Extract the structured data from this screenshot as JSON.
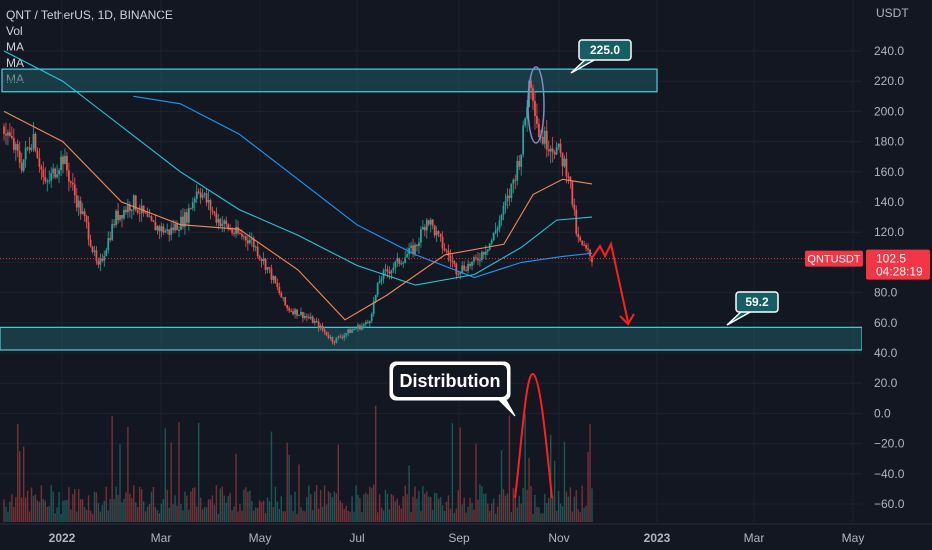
{
  "legend": {
    "symbol_line": "QNT / TetherUS, 1D, BINANCE",
    "indicators": [
      "Vol",
      "MA",
      "MA",
      "MA"
    ]
  },
  "axis": {
    "currency": "USDT",
    "y_ticks": [
      240,
      220,
      200,
      180,
      160,
      140,
      120,
      100,
      80,
      60,
      40,
      20,
      0,
      -20,
      -40,
      -60
    ],
    "y_tick_labels": [
      "240.0",
      "220.0",
      "200.0",
      "180.0",
      "160.0",
      "140.0",
      "120.0",
      "100.0",
      "80.0",
      "60.0",
      "40.0",
      "20.0",
      "0.0",
      "−20.0",
      "−40.0",
      "−60.0"
    ],
    "x_labels": [
      "2022",
      "Mar",
      "May",
      "Jul",
      "Sep",
      "Nov",
      "2023",
      "Mar",
      "May"
    ]
  },
  "price_tag": {
    "symbol": "QNTUSDT",
    "price": "102.5",
    "countdown": "04:28:19"
  },
  "annotations": {
    "top_callout": "225.0",
    "bottom_callout": "59.2",
    "distribution_label": "Distribution"
  },
  "colors": {
    "background": "#131722",
    "bull": "#26a69a",
    "bear": "#ef5350",
    "zone_border": "#4dd0e1",
    "zone_fill": "#1f5a63",
    "ma_fast": "#ef8a5a",
    "ma_mid": "#26c6da",
    "ma_slow": "#2196f3",
    "arrow": "#ff1f1f",
    "price_tag": "#f23645"
  },
  "chart_data": {
    "type": "candlestick",
    "title": "QNT / TetherUS, 1D, BINANCE",
    "ylabel": "USDT",
    "ylim": [
      -60,
      250
    ],
    "resistance_zone": [
      213,
      228
    ],
    "support_zone": [
      42,
      57
    ],
    "last_price": 102.5,
    "price_path": [
      {
        "t": 0,
        "p": 190
      },
      {
        "t": 0.03,
        "p": 165
      },
      {
        "t": 0.05,
        "p": 185
      },
      {
        "t": 0.07,
        "p": 150
      },
      {
        "t": 0.1,
        "p": 170
      },
      {
        "t": 0.12,
        "p": 145
      },
      {
        "t": 0.14,
        "p": 125
      },
      {
        "t": 0.16,
        "p": 95
      },
      {
        "t": 0.19,
        "p": 130
      },
      {
        "t": 0.22,
        "p": 140
      },
      {
        "t": 0.25,
        "p": 125
      },
      {
        "t": 0.28,
        "p": 120
      },
      {
        "t": 0.31,
        "p": 130
      },
      {
        "t": 0.33,
        "p": 150
      },
      {
        "t": 0.36,
        "p": 130
      },
      {
        "t": 0.39,
        "p": 120
      },
      {
        "t": 0.42,
        "p": 115
      },
      {
        "t": 0.45,
        "p": 95
      },
      {
        "t": 0.48,
        "p": 70
      },
      {
        "t": 0.51,
        "p": 65
      },
      {
        "t": 0.53,
        "p": 60
      },
      {
        "t": 0.56,
        "p": 48
      },
      {
        "t": 0.59,
        "p": 55
      },
      {
        "t": 0.62,
        "p": 60
      },
      {
        "t": 0.64,
        "p": 90
      },
      {
        "t": 0.67,
        "p": 100
      },
      {
        "t": 0.7,
        "p": 110
      },
      {
        "t": 0.72,
        "p": 130
      },
      {
        "t": 0.74,
        "p": 115
      },
      {
        "t": 0.77,
        "p": 95
      },
      {
        "t": 0.8,
        "p": 100
      },
      {
        "t": 0.83,
        "p": 115
      },
      {
        "t": 0.86,
        "p": 145
      },
      {
        "t": 0.88,
        "p": 175
      },
      {
        "t": 0.895,
        "p": 225
      },
      {
        "t": 0.91,
        "p": 185
      },
      {
        "t": 0.94,
        "p": 175
      },
      {
        "t": 0.96,
        "p": 160
      },
      {
        "t": 0.975,
        "p": 115
      },
      {
        "t": 1,
        "p": 102.5
      }
    ],
    "ma_fast": [
      [
        0.0,
        200
      ],
      [
        0.1,
        180
      ],
      [
        0.2,
        140
      ],
      [
        0.3,
        125
      ],
      [
        0.4,
        122
      ],
      [
        0.5,
        95
      ],
      [
        0.58,
        62
      ],
      [
        0.65,
        78
      ],
      [
        0.75,
        105
      ],
      [
        0.85,
        112
      ],
      [
        0.9,
        145
      ],
      [
        0.95,
        155
      ],
      [
        1.0,
        152
      ]
    ],
    "ma_mid": [
      [
        0.0,
        240
      ],
      [
        0.1,
        220
      ],
      [
        0.2,
        190
      ],
      [
        0.3,
        160
      ],
      [
        0.4,
        135
      ],
      [
        0.5,
        118
      ],
      [
        0.6,
        98
      ],
      [
        0.7,
        85
      ],
      [
        0.8,
        92
      ],
      [
        0.88,
        110
      ],
      [
        0.94,
        128
      ],
      [
        1.0,
        130
      ]
    ],
    "ma_slow": [
      [
        0.22,
        210
      ],
      [
        0.3,
        205
      ],
      [
        0.4,
        185
      ],
      [
        0.5,
        155
      ],
      [
        0.6,
        125
      ],
      [
        0.7,
        105
      ],
      [
        0.8,
        90
      ],
      [
        0.88,
        100
      ],
      [
        0.95,
        104
      ],
      [
        1.0,
        106
      ]
    ]
  }
}
